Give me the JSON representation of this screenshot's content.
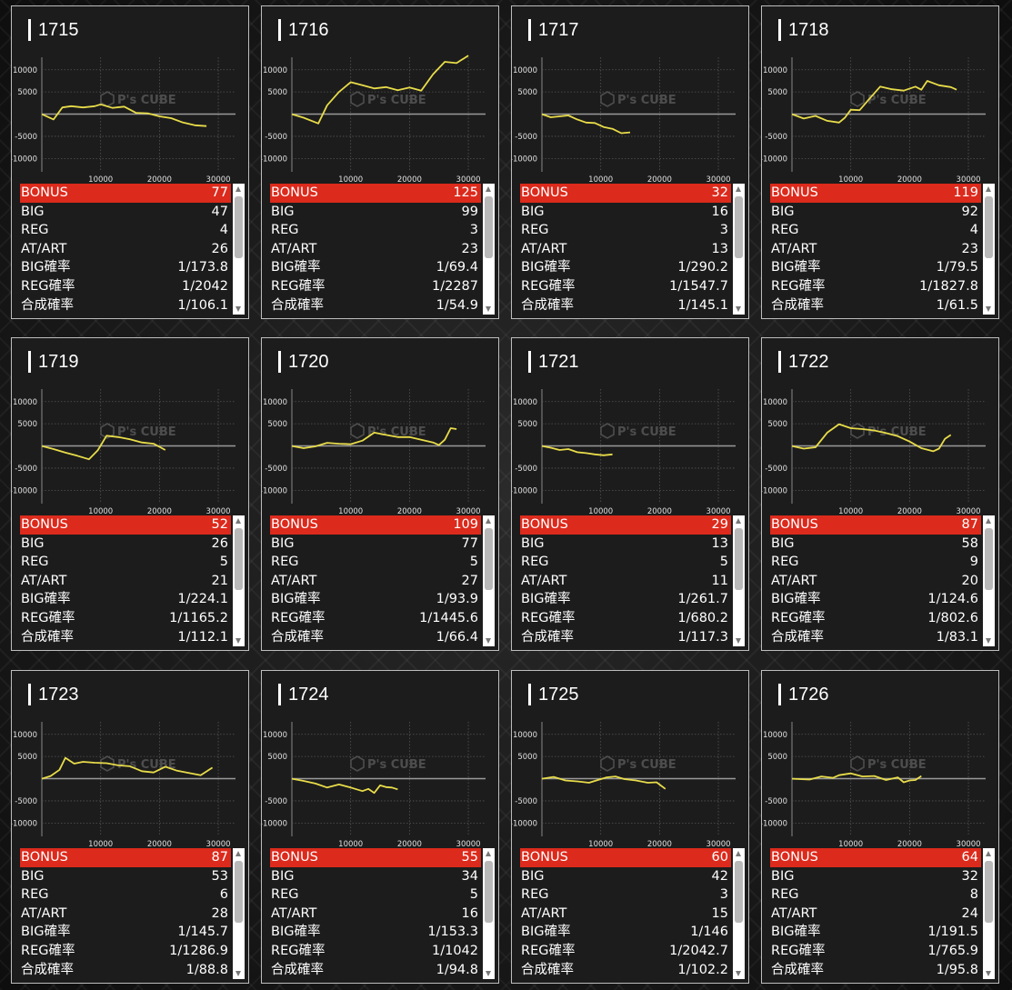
{
  "labels": {
    "bonus": "BONUS",
    "big": "BIG",
    "reg": "REG",
    "atart": "AT/ART",
    "big_rate": "BIG確率",
    "reg_rate": "REG確率",
    "total_rate": "合成確率"
  },
  "watermark": {
    "brand": "P's CUBE",
    "icon": "cube-logo-icon"
  },
  "colors": {
    "line": "#e8dc4a",
    "bonus_bg": "#dc2a1c"
  },
  "chart_axes": {
    "y_ticks": [
      10000,
      5000,
      0,
      -5000,
      -10000
    ],
    "y_tick_labels": [
      "10000",
      "5000",
      "",
      "-5000",
      "-10000"
    ],
    "x_ticks": [
      10000,
      20000,
      30000
    ],
    "x_tick_labels": [
      "10000",
      "20000",
      "30000"
    ],
    "xlim": [
      0,
      32000
    ],
    "ylim": [
      -13000,
      12000
    ]
  },
  "chart_data": [
    {
      "type": "line",
      "machine": "1715",
      "x": [
        0,
        2000,
        3500,
        5000,
        7000,
        9000,
        10000,
        12000,
        14000,
        16000,
        18000,
        20000,
        22000,
        24000,
        26000,
        28000
      ],
      "y": [
        0,
        -1200,
        1500,
        1800,
        1500,
        1800,
        2200,
        1400,
        1700,
        300,
        200,
        -500,
        -900,
        -1900,
        -2500,
        -2700
      ]
    },
    {
      "type": "line",
      "machine": "1716",
      "x": [
        0,
        2000,
        4500,
        6000,
        8000,
        10000,
        12000,
        14000,
        16000,
        18000,
        20000,
        22000,
        24000,
        26000,
        28000,
        30000
      ],
      "y": [
        0,
        -800,
        -2100,
        2000,
        5000,
        7200,
        6500,
        5800,
        6100,
        5400,
        6000,
        5300,
        9000,
        11800,
        11500,
        13200
      ]
    },
    {
      "type": "line",
      "machine": "1717",
      "x": [
        0,
        1500,
        3000,
        4500,
        6000,
        7500,
        9000,
        10500,
        12000,
        13500,
        15000
      ],
      "y": [
        0,
        -700,
        -500,
        -300,
        -1200,
        -1900,
        -2000,
        -2900,
        -3300,
        -4300,
        -4100
      ]
    },
    {
      "type": "line",
      "machine": "1718",
      "x": [
        0,
        2000,
        4000,
        6000,
        8000,
        9000,
        10000,
        11500,
        13000,
        15000,
        17000,
        19000,
        21000,
        22000,
        23000,
        25000,
        27000,
        28000
      ],
      "y": [
        0,
        -1000,
        -400,
        -1500,
        -1900,
        -800,
        1000,
        900,
        3200,
        6200,
        5600,
        5300,
        6200,
        5500,
        7500,
        6500,
        6100,
        5500
      ]
    },
    {
      "type": "line",
      "machine": "1719",
      "x": [
        0,
        2000,
        4000,
        6000,
        8000,
        9500,
        11000,
        13000,
        15000,
        17000,
        19000,
        21000
      ],
      "y": [
        0,
        -700,
        -1500,
        -2200,
        -3000,
        -1000,
        2300,
        2000,
        1500,
        800,
        500,
        -900
      ]
    },
    {
      "type": "line",
      "machine": "1720",
      "x": [
        0,
        2000,
        4000,
        6000,
        8000,
        10000,
        12000,
        14000,
        16000,
        18000,
        20000,
        22000,
        24000,
        25000,
        26000,
        27000,
        28000
      ],
      "y": [
        0,
        -500,
        -100,
        700,
        500,
        400,
        1200,
        3000,
        2500,
        2000,
        2000,
        1400,
        800,
        200,
        1400,
        4000,
        3800
      ]
    },
    {
      "type": "line",
      "machine": "1721",
      "x": [
        0,
        1500,
        3000,
        4500,
        6000,
        7500,
        9000,
        10500,
        12000
      ],
      "y": [
        0,
        -400,
        -900,
        -700,
        -1400,
        -1600,
        -1900,
        -2100,
        -1900
      ]
    },
    {
      "type": "line",
      "machine": "1722",
      "x": [
        0,
        2000,
        4000,
        6000,
        8000,
        10000,
        12000,
        14000,
        16000,
        18000,
        20000,
        22000,
        24000,
        25000,
        26000,
        27000
      ],
      "y": [
        0,
        -600,
        -300,
        3000,
        4900,
        4000,
        3800,
        3500,
        2900,
        2200,
        1000,
        -500,
        -1200,
        -600,
        1600,
        2500
      ]
    },
    {
      "type": "line",
      "machine": "1723",
      "x": [
        0,
        1500,
        3000,
        4000,
        5500,
        7000,
        9000,
        11000,
        13000,
        15000,
        17000,
        19000,
        21000,
        23000,
        25000,
        27000,
        29000
      ],
      "y": [
        0,
        600,
        2000,
        4700,
        3400,
        3800,
        3600,
        3500,
        3000,
        2800,
        1700,
        1400,
        2700,
        1800,
        1300,
        800,
        2500
      ]
    },
    {
      "type": "line",
      "machine": "1724",
      "x": [
        0,
        2000,
        4000,
        6000,
        8000,
        10000,
        12000,
        13000,
        14000,
        15000,
        16000,
        17000,
        18000
      ],
      "y": [
        0,
        -500,
        -1100,
        -2000,
        -1300,
        -2000,
        -2800,
        -2300,
        -3200,
        -1500,
        -1900,
        -2000,
        -2400
      ]
    },
    {
      "type": "line",
      "machine": "1725",
      "x": [
        0,
        2000,
        4000,
        6000,
        8000,
        9500,
        11000,
        12500,
        14000,
        16000,
        18000,
        19500,
        21000
      ],
      "y": [
        0,
        400,
        -400,
        -600,
        -900,
        -300,
        300,
        500,
        -100,
        -400,
        -900,
        -800,
        -2300
      ]
    },
    {
      "type": "line",
      "machine": "1726",
      "x": [
        0,
        3000,
        5000,
        7000,
        8000,
        10000,
        12000,
        14000,
        16000,
        18000,
        19000,
        20000,
        21000,
        22000
      ],
      "y": [
        0,
        -200,
        500,
        200,
        800,
        1200,
        500,
        600,
        -300,
        300,
        -800,
        -400,
        -300,
        600
      ]
    }
  ],
  "machines": [
    {
      "number": "1715",
      "bonus": "77",
      "big": "47",
      "reg": "4",
      "atart": "26",
      "big_rate": "1/173.8",
      "reg_rate": "1/2042",
      "total_rate": "1/106.1"
    },
    {
      "number": "1716",
      "bonus": "125",
      "big": "99",
      "reg": "3",
      "atart": "23",
      "big_rate": "1/69.4",
      "reg_rate": "1/2287",
      "total_rate": "1/54.9"
    },
    {
      "number": "1717",
      "bonus": "32",
      "big": "16",
      "reg": "3",
      "atart": "13",
      "big_rate": "1/290.2",
      "reg_rate": "1/1547.7",
      "total_rate": "1/145.1"
    },
    {
      "number": "1718",
      "bonus": "119",
      "big": "92",
      "reg": "4",
      "atart": "23",
      "big_rate": "1/79.5",
      "reg_rate": "1/1827.8",
      "total_rate": "1/61.5"
    },
    {
      "number": "1719",
      "bonus": "52",
      "big": "26",
      "reg": "5",
      "atart": "21",
      "big_rate": "1/224.1",
      "reg_rate": "1/1165.2",
      "total_rate": "1/112.1"
    },
    {
      "number": "1720",
      "bonus": "109",
      "big": "77",
      "reg": "5",
      "atart": "27",
      "big_rate": "1/93.9",
      "reg_rate": "1/1445.6",
      "total_rate": "1/66.4"
    },
    {
      "number": "1721",
      "bonus": "29",
      "big": "13",
      "reg": "5",
      "atart": "11",
      "big_rate": "1/261.7",
      "reg_rate": "1/680.2",
      "total_rate": "1/117.3"
    },
    {
      "number": "1722",
      "bonus": "87",
      "big": "58",
      "reg": "9",
      "atart": "20",
      "big_rate": "1/124.6",
      "reg_rate": "1/802.6",
      "total_rate": "1/83.1"
    },
    {
      "number": "1723",
      "bonus": "87",
      "big": "53",
      "reg": "6",
      "atart": "28",
      "big_rate": "1/145.7",
      "reg_rate": "1/1286.9",
      "total_rate": "1/88.8"
    },
    {
      "number": "1724",
      "bonus": "55",
      "big": "34",
      "reg": "5",
      "atart": "16",
      "big_rate": "1/153.3",
      "reg_rate": "1/1042",
      "total_rate": "1/94.8"
    },
    {
      "number": "1725",
      "bonus": "60",
      "big": "42",
      "reg": "3",
      "atart": "15",
      "big_rate": "1/146",
      "reg_rate": "1/2042.7",
      "total_rate": "1/102.2"
    },
    {
      "number": "1726",
      "bonus": "64",
      "big": "32",
      "reg": "8",
      "atart": "24",
      "big_rate": "1/191.5",
      "reg_rate": "1/765.9",
      "total_rate": "1/95.8"
    }
  ]
}
